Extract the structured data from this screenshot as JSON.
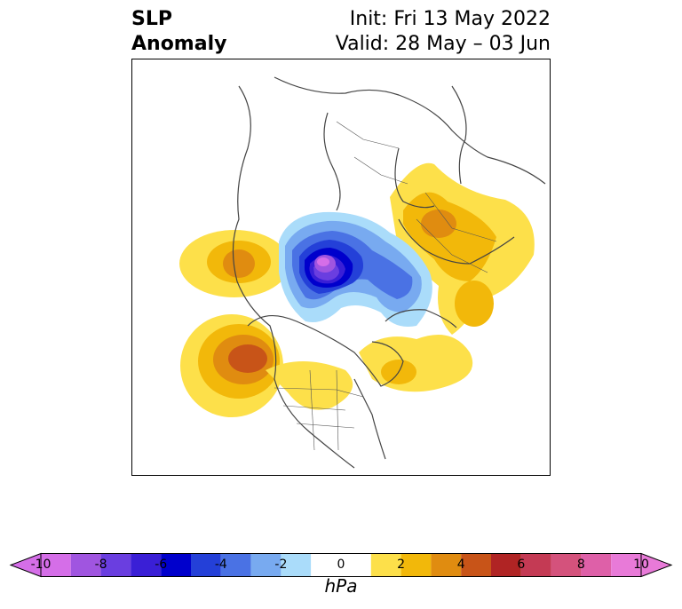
{
  "title": {
    "left_line1": "SLP",
    "left_line2": "Anomaly",
    "right_line1": "Init: Fri 13 May 2022",
    "right_line2": "Valid: 28 May – 03 Jun"
  },
  "colorbar": {
    "unit": "hPa",
    "tick_labels": [
      "-10",
      "-8",
      "-6",
      "-4",
      "-2",
      "0",
      "2",
      "4",
      "6",
      "8",
      "10"
    ],
    "levels": [
      -10,
      -9,
      -8,
      -7,
      -6,
      -5,
      -4,
      -3,
      -2,
      -1,
      1,
      2,
      3,
      4,
      5,
      6,
      7,
      8,
      9,
      10
    ],
    "colors": [
      "#d56ee8",
      "#a055e0",
      "#6a3ee0",
      "#3a1fd6",
      "#0000cc",
      "#2440d8",
      "#4a72e4",
      "#78aaf0",
      "#aadcfa",
      "#ffffff",
      "#fde04a",
      "#f2b80a",
      "#e08c10",
      "#c85418",
      "#b02424",
      "#c43a54",
      "#d4527c",
      "#de60a8",
      "#e87ad8"
    ],
    "extend_low_color": "#d56ee8",
    "extend_high_color": "#e87ad8"
  },
  "map": {
    "projection": "north polar stereographic",
    "features": [
      {
        "name": "aleutian-high",
        "sign": "positive",
        "peak_hpa": 5
      },
      {
        "name": "bering-high",
        "sign": "positive",
        "peak_hpa": 3
      },
      {
        "name": "arctic-low",
        "sign": "negative",
        "peak_hpa": -10
      },
      {
        "name": "barents-low-lobe",
        "sign": "negative",
        "peak_hpa": -5
      },
      {
        "name": "siberian-high",
        "sign": "positive",
        "peak_hpa": 4
      },
      {
        "name": "atlantic-high",
        "sign": "positive",
        "peak_hpa": 2
      },
      {
        "name": "north-america-high",
        "sign": "positive",
        "peak_hpa": 2
      }
    ]
  }
}
